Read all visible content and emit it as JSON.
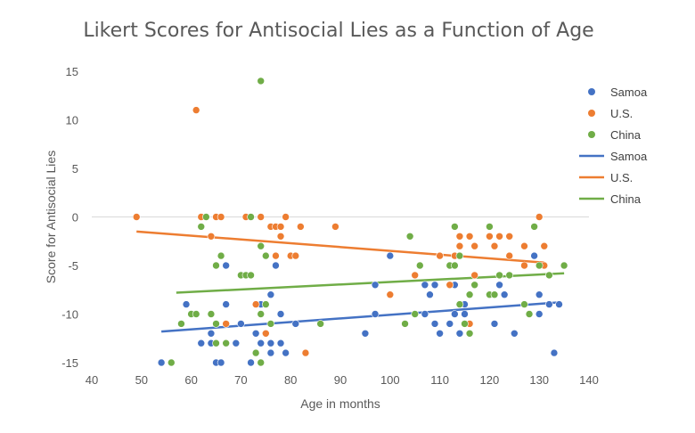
{
  "chart_data": {
    "type": "scatter",
    "title": "Likert Scores for Antisocial Lies as a Function of Age",
    "xlabel": "Age in months",
    "ylabel": "Score for Antisocial Lies",
    "xlim": [
      40,
      140
    ],
    "ylim": [
      -15,
      15
    ],
    "xticks": [
      40,
      50,
      60,
      70,
      80,
      90,
      100,
      110,
      120,
      130,
      140
    ],
    "yticks": [
      -15,
      -10,
      -5,
      0,
      5,
      10,
      15
    ],
    "grid": false,
    "zero_line": true,
    "legend_position": "right",
    "series": [
      {
        "name": "Samoa",
        "color": "#4472C4",
        "points": [
          [
            54,
            -15
          ],
          [
            59,
            -9
          ],
          [
            60,
            -10
          ],
          [
            62,
            -13
          ],
          [
            64,
            -12
          ],
          [
            64,
            -13
          ],
          [
            65,
            -15
          ],
          [
            66,
            -15
          ],
          [
            67,
            -9
          ],
          [
            67,
            -5
          ],
          [
            69,
            -13
          ],
          [
            70,
            -11
          ],
          [
            70,
            -6
          ],
          [
            72,
            -15
          ],
          [
            73,
            -12
          ],
          [
            74,
            -13
          ],
          [
            74,
            -9
          ],
          [
            75,
            -12
          ],
          [
            76,
            -13
          ],
          [
            76,
            -14
          ],
          [
            76,
            -8
          ],
          [
            77,
            -5
          ],
          [
            78,
            -10
          ],
          [
            78,
            -13
          ],
          [
            79,
            -14
          ],
          [
            81,
            -11
          ],
          [
            95,
            -12
          ],
          [
            97,
            -7
          ],
          [
            97,
            -10
          ],
          [
            100,
            -4
          ],
          [
            107,
            -7
          ],
          [
            107,
            -10
          ],
          [
            108,
            -8
          ],
          [
            109,
            -11
          ],
          [
            109,
            -7
          ],
          [
            110,
            -12
          ],
          [
            112,
            -11
          ],
          [
            113,
            -7
          ],
          [
            113,
            -10
          ],
          [
            114,
            -12
          ],
          [
            115,
            -10
          ],
          [
            115,
            -9
          ],
          [
            116,
            -11
          ],
          [
            121,
            -11
          ],
          [
            122,
            -7
          ],
          [
            123,
            -8
          ],
          [
            125,
            -12
          ],
          [
            129,
            -4
          ],
          [
            130,
            -10
          ],
          [
            130,
            -8
          ],
          [
            132,
            -9
          ],
          [
            133,
            -14
          ],
          [
            134,
            -9
          ]
        ]
      },
      {
        "name": "U.S.",
        "color": "#ED7D31",
        "points": [
          [
            49,
            0
          ],
          [
            61,
            11
          ],
          [
            62,
            0
          ],
          [
            64,
            -2
          ],
          [
            65,
            0
          ],
          [
            66,
            0
          ],
          [
            67,
            -11
          ],
          [
            71,
            0
          ],
          [
            73,
            -9
          ],
          [
            74,
            0
          ],
          [
            75,
            -12
          ],
          [
            76,
            -1
          ],
          [
            77,
            -4
          ],
          [
            77,
            -1
          ],
          [
            78,
            -2
          ],
          [
            78,
            -1
          ],
          [
            79,
            0
          ],
          [
            80,
            -4
          ],
          [
            81,
            -4
          ],
          [
            82,
            -1
          ],
          [
            83,
            -14
          ],
          [
            89,
            -1
          ],
          [
            100,
            -8
          ],
          [
            105,
            -6
          ],
          [
            110,
            -4
          ],
          [
            112,
            -7
          ],
          [
            113,
            -4
          ],
          [
            114,
            -2
          ],
          [
            114,
            -3
          ],
          [
            116,
            -2
          ],
          [
            116,
            -11
          ],
          [
            117,
            -6
          ],
          [
            117,
            -3
          ],
          [
            120,
            -2
          ],
          [
            121,
            -3
          ],
          [
            122,
            -2
          ],
          [
            124,
            -2
          ],
          [
            124,
            -4
          ],
          [
            127,
            -3
          ],
          [
            127,
            -5
          ],
          [
            130,
            0
          ],
          [
            131,
            -3
          ],
          [
            131,
            -5
          ]
        ]
      },
      {
        "name": "China",
        "color": "#70AD47",
        "points": [
          [
            56,
            -15
          ],
          [
            58,
            -11
          ],
          [
            60,
            -10
          ],
          [
            61,
            -10
          ],
          [
            62,
            -1
          ],
          [
            63,
            0
          ],
          [
            64,
            -10
          ],
          [
            65,
            -5
          ],
          [
            65,
            -11
          ],
          [
            65,
            -13
          ],
          [
            66,
            -4
          ],
          [
            67,
            -13
          ],
          [
            70,
            -6
          ],
          [
            71,
            -6
          ],
          [
            72,
            0
          ],
          [
            72,
            -6
          ],
          [
            73,
            -14
          ],
          [
            74,
            14
          ],
          [
            74,
            -3
          ],
          [
            74,
            -10
          ],
          [
            74,
            -15
          ],
          [
            75,
            -9
          ],
          [
            75,
            -4
          ],
          [
            76,
            -11
          ],
          [
            86,
            -11
          ],
          [
            103,
            -11
          ],
          [
            104,
            -2
          ],
          [
            105,
            -10
          ],
          [
            106,
            -5
          ],
          [
            112,
            -5
          ],
          [
            113,
            -5
          ],
          [
            113,
            -1
          ],
          [
            114,
            -4
          ],
          [
            114,
            -9
          ],
          [
            115,
            -11
          ],
          [
            116,
            -8
          ],
          [
            116,
            -12
          ],
          [
            117,
            -7
          ],
          [
            120,
            -1
          ],
          [
            120,
            -8
          ],
          [
            121,
            -8
          ],
          [
            122,
            -6
          ],
          [
            124,
            -6
          ],
          [
            127,
            -9
          ],
          [
            128,
            -10
          ],
          [
            129,
            -1
          ],
          [
            130,
            -5
          ],
          [
            132,
            -6
          ],
          [
            135,
            -5
          ]
        ]
      }
    ],
    "trendlines": [
      {
        "name": "Samoa",
        "color": "#4472C4",
        "x": [
          54,
          134
        ],
        "y": [
          -11.8,
          -8.8
        ]
      },
      {
        "name": "U.S.",
        "color": "#ED7D31",
        "x": [
          49,
          131
        ],
        "y": [
          -1.5,
          -4.7
        ]
      },
      {
        "name": "China",
        "color": "#70AD47",
        "x": [
          57,
          135
        ],
        "y": [
          -7.8,
          -5.8
        ]
      }
    ]
  }
}
